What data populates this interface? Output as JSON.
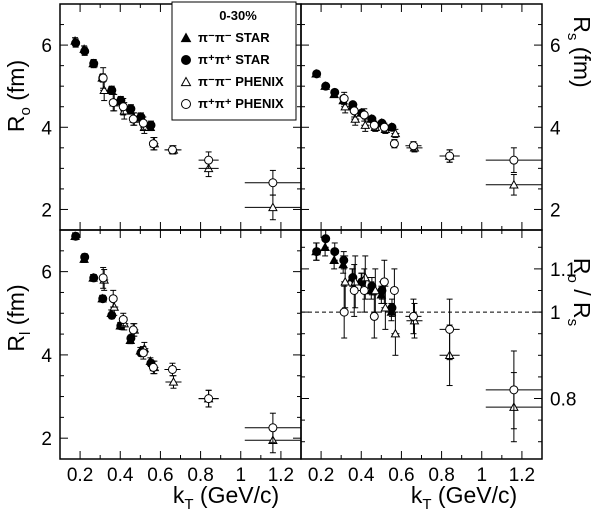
{
  "chart_data": [
    {
      "panel": "top-left",
      "type": "scatter",
      "ylabel": "R_o (fm)",
      "ylabel_main": "R",
      "ylabel_sub": "o",
      "ylabel_unit": "(fm)",
      "ylim": [
        1.5,
        7.0
      ],
      "yticks": [
        2,
        4,
        6
      ],
      "xlim": [
        0.1,
        1.3
      ],
      "legend": {
        "title": "0-30%",
        "position": "top-center",
        "entries": [
          "π⁻π⁻ STAR",
          "π⁺π⁺ STAR",
          "π⁻π⁻ PHENIX",
          "π⁺π⁺ PHENIX"
        ]
      },
      "series": [
        {
          "name": "π⁻π⁻ STAR",
          "marker": "filled-triangle",
          "x": [
            0.175,
            0.22,
            0.265,
            0.31,
            0.355,
            0.4,
            0.45,
            0.5,
            0.55
          ],
          "y": [
            6.1,
            5.9,
            5.55,
            5.2,
            4.9,
            4.65,
            4.4,
            4.25,
            4.0
          ],
          "err": [
            0.08,
            0.08,
            0.08,
            0.08,
            0.08,
            0.08,
            0.08,
            0.08,
            0.08
          ]
        },
        {
          "name": "π⁺π⁺ STAR",
          "marker": "filled-circle",
          "x": [
            0.178,
            0.223,
            0.268,
            0.313,
            0.358,
            0.403,
            0.453,
            0.503,
            0.553
          ],
          "y": [
            6.05,
            5.85,
            5.55,
            5.2,
            4.9,
            4.65,
            4.45,
            4.25,
            4.05
          ],
          "err": [
            0.1,
            0.1,
            0.1,
            0.1,
            0.1,
            0.1,
            0.1,
            0.1,
            0.1
          ]
        },
        {
          "name": "π⁻π⁻ PHENIX",
          "marker": "open-triangle",
          "x": [
            0.32,
            0.37,
            0.42,
            0.47,
            0.52,
            0.57,
            0.665,
            0.84,
            1.16
          ],
          "y": [
            4.9,
            4.6,
            4.4,
            4.2,
            4.0,
            3.6,
            3.45,
            3.0,
            2.05
          ],
          "err": [
            0.25,
            0.2,
            0.2,
            0.15,
            0.15,
            0.15,
            0.1,
            0.2,
            0.3
          ],
          "xerr": [
            0.02,
            0.02,
            0.02,
            0.02,
            0.02,
            0.02,
            0.04,
            0.05,
            0.14
          ]
        },
        {
          "name": "π⁺π⁺ PHENIX",
          "marker": "open-circle",
          "x": [
            0.315,
            0.365,
            0.415,
            0.465,
            0.515,
            0.565,
            0.66,
            0.84,
            1.16
          ],
          "y": [
            5.2,
            4.6,
            4.5,
            4.2,
            4.1,
            3.6,
            3.45,
            3.2,
            2.65
          ],
          "err": [
            0.25,
            0.2,
            0.2,
            0.15,
            0.15,
            0.15,
            0.1,
            0.2,
            0.3
          ],
          "xerr": [
            0.02,
            0.02,
            0.02,
            0.02,
            0.02,
            0.02,
            0.04,
            0.05,
            0.14
          ]
        }
      ]
    },
    {
      "panel": "top-right",
      "type": "scatter",
      "ylabel": "R_s (fm)",
      "ylabel_main": "R",
      "ylabel_sub": "s",
      "ylabel_unit": "(fm)",
      "ylim": [
        1.5,
        7.0
      ],
      "yticks": [
        2,
        4,
        6
      ],
      "xlim": [
        0.1,
        1.3
      ],
      "series": [
        {
          "name": "π⁻π⁻ STAR",
          "marker": "filled-triangle",
          "x": [
            0.175,
            0.22,
            0.265,
            0.31,
            0.355,
            0.4,
            0.45,
            0.5,
            0.55
          ],
          "y": [
            5.3,
            5.0,
            4.8,
            4.65,
            4.5,
            4.35,
            4.2,
            4.1,
            4.0
          ],
          "err": [
            0.05,
            0.05,
            0.05,
            0.05,
            0.05,
            0.05,
            0.05,
            0.05,
            0.05
          ]
        },
        {
          "name": "π⁺π⁺ STAR",
          "marker": "filled-circle",
          "x": [
            0.178,
            0.223,
            0.268,
            0.313,
            0.358,
            0.403,
            0.453,
            0.503,
            0.553
          ],
          "y": [
            5.3,
            5.0,
            4.85,
            4.7,
            4.55,
            4.35,
            4.2,
            4.1,
            4.0
          ],
          "err": [
            0.05,
            0.05,
            0.05,
            0.05,
            0.05,
            0.05,
            0.05,
            0.05,
            0.05
          ]
        },
        {
          "name": "π⁻π⁻ PHENIX",
          "marker": "open-triangle",
          "x": [
            0.32,
            0.37,
            0.42,
            0.47,
            0.52,
            0.57,
            0.665,
            0.84,
            1.16
          ],
          "y": [
            4.5,
            4.2,
            4.05,
            4.0,
            3.95,
            3.85,
            3.5,
            3.3,
            2.6
          ],
          "err": [
            0.15,
            0.15,
            0.15,
            0.1,
            0.1,
            0.1,
            0.1,
            0.15,
            0.25
          ],
          "xerr": [
            0.02,
            0.02,
            0.02,
            0.02,
            0.02,
            0.02,
            0.04,
            0.05,
            0.14
          ]
        },
        {
          "name": "π⁺π⁺ PHENIX",
          "marker": "open-circle",
          "x": [
            0.315,
            0.365,
            0.415,
            0.465,
            0.515,
            0.565,
            0.66,
            0.84,
            1.16
          ],
          "y": [
            4.7,
            4.4,
            4.3,
            4.05,
            4.0,
            3.6,
            3.55,
            3.3,
            3.2
          ],
          "err": [
            0.15,
            0.15,
            0.15,
            0.1,
            0.1,
            0.1,
            0.1,
            0.15,
            0.3
          ],
          "xerr": [
            0.02,
            0.02,
            0.02,
            0.02,
            0.02,
            0.02,
            0.04,
            0.05,
            0.14
          ]
        }
      ]
    },
    {
      "panel": "bottom-left",
      "type": "scatter",
      "ylabel": "R_l (fm)",
      "ylabel_main": "R",
      "ylabel_sub": "l",
      "ylabel_unit": "(fm)",
      "xlabel": "k_T (GeV/c)",
      "xlabel_main": "k",
      "xlabel_sub": "T",
      "xlabel_unit": "(GeV/c)",
      "ylim": [
        1.5,
        7.0
      ],
      "yticks": [
        2,
        4,
        6
      ],
      "xlim": [
        0.1,
        1.3
      ],
      "xticks": [
        0.2,
        0.4,
        0.6,
        0.8,
        1.0,
        1.2
      ],
      "xticklabels": [
        "0.2",
        "0.4",
        "0.6",
        "0.8",
        "1",
        "1.2"
      ],
      "series": [
        {
          "name": "π⁻π⁻ STAR",
          "marker": "filled-triangle",
          "x": [
            0.175,
            0.22,
            0.265,
            0.31,
            0.355,
            0.4,
            0.45,
            0.5,
            0.55
          ],
          "y": [
            6.85,
            6.3,
            5.85,
            5.35,
            5.0,
            4.7,
            4.35,
            4.1,
            3.85
          ],
          "err": [
            0.08,
            0.08,
            0.08,
            0.08,
            0.08,
            0.08,
            0.08,
            0.08,
            0.08
          ]
        },
        {
          "name": "π⁺π⁺ STAR",
          "marker": "filled-circle",
          "x": [
            0.178,
            0.223,
            0.268,
            0.313,
            0.358,
            0.403,
            0.453,
            0.503,
            0.553
          ],
          "y": [
            6.85,
            6.35,
            5.85,
            5.35,
            4.95,
            4.7,
            4.4,
            4.05,
            3.8
          ],
          "err": [
            0.08,
            0.08,
            0.08,
            0.08,
            0.08,
            0.08,
            0.08,
            0.08,
            0.08
          ]
        },
        {
          "name": "π⁻π⁻ PHENIX",
          "marker": "open-triangle",
          "x": [
            0.32,
            0.37,
            0.42,
            0.47,
            0.52,
            0.57,
            0.665,
            0.84,
            1.16
          ],
          "y": [
            5.8,
            5.15,
            4.75,
            4.6,
            4.15,
            3.7,
            3.35,
            2.95,
            1.95
          ],
          "err": [
            0.25,
            0.2,
            0.15,
            0.15,
            0.15,
            0.15,
            0.15,
            0.2,
            0.3
          ],
          "xerr": [
            0.02,
            0.02,
            0.02,
            0.02,
            0.02,
            0.02,
            0.04,
            0.05,
            0.14
          ]
        },
        {
          "name": "π⁺π⁺ PHENIX",
          "marker": "open-circle",
          "x": [
            0.315,
            0.365,
            0.415,
            0.465,
            0.515,
            0.565,
            0.66,
            0.84,
            1.16
          ],
          "y": [
            5.85,
            5.35,
            4.85,
            4.6,
            4.05,
            3.7,
            3.65,
            2.95,
            2.25
          ],
          "err": [
            0.25,
            0.2,
            0.15,
            0.15,
            0.15,
            0.15,
            0.15,
            0.2,
            0.35
          ],
          "xerr": [
            0.02,
            0.02,
            0.02,
            0.02,
            0.02,
            0.02,
            0.04,
            0.05,
            0.14
          ]
        }
      ]
    },
    {
      "panel": "bottom-right",
      "type": "scatter",
      "ylabel": "R_o / R_s",
      "ylabel_main": "R",
      "ylabel_sub": "o",
      "ylabel_unit": "/ R",
      "ylabel_sub2": "s",
      "xlabel": "k_T (GeV/c)",
      "xlabel_main": "k",
      "xlabel_sub": "T",
      "xlabel_unit": "(GeV/c)",
      "ylim": [
        0.66,
        1.19
      ],
      "yticks": [
        0.8,
        1.0,
        1.1
      ],
      "yticklabels": [
        "0.8",
        "1",
        "1.1"
      ],
      "xlim": [
        0.1,
        1.3
      ],
      "xticks": [
        0.2,
        0.4,
        0.6,
        0.8,
        1.0,
        1.2
      ],
      "xticklabels": [
        "0.2",
        "0.4",
        "0.6",
        "0.8",
        "1",
        "1.2"
      ],
      "reference_line": {
        "y": 1.0,
        "style": "dashed"
      },
      "series": [
        {
          "name": "π⁻π⁻ STAR",
          "marker": "filled-triangle",
          "x": [
            0.175,
            0.22,
            0.265,
            0.31,
            0.355,
            0.4,
            0.45,
            0.5,
            0.55
          ],
          "y": [
            1.14,
            1.15,
            1.12,
            1.11,
            1.08,
            1.07,
            1.05,
            1.04,
            1.0
          ],
          "err": [
            0.02,
            0.02,
            0.02,
            0.02,
            0.02,
            0.02,
            0.02,
            0.02,
            0.02
          ]
        },
        {
          "name": "π⁺π⁺ STAR",
          "marker": "filled-circle",
          "x": [
            0.178,
            0.223,
            0.268,
            0.313,
            0.358,
            0.403,
            0.453,
            0.503,
            0.553
          ],
          "y": [
            1.14,
            1.17,
            1.14,
            1.12,
            1.08,
            1.07,
            1.06,
            1.05,
            1.01
          ],
          "err": [
            0.02,
            0.02,
            0.02,
            0.02,
            0.02,
            0.02,
            0.02,
            0.02,
            0.02
          ]
        },
        {
          "name": "π⁻π⁻ PHENIX",
          "marker": "open-triangle",
          "x": [
            0.32,
            0.37,
            0.42,
            0.47,
            0.52,
            0.57,
            0.665,
            0.84,
            1.16
          ],
          "y": [
            1.07,
            1.07,
            1.08,
            1.05,
            1.01,
            0.95,
            0.98,
            0.9,
            0.78
          ],
          "err": [
            0.06,
            0.06,
            0.05,
            0.05,
            0.05,
            0.05,
            0.04,
            0.07,
            0.08
          ],
          "xerr": [
            0.02,
            0.02,
            0.02,
            0.02,
            0.02,
            0.02,
            0.04,
            0.05,
            0.14
          ]
        },
        {
          "name": "π⁺π⁺ PHENIX",
          "marker": "open-circle",
          "x": [
            0.315,
            0.365,
            0.415,
            0.465,
            0.515,
            0.565,
            0.66,
            0.84,
            1.16
          ],
          "y": [
            1.0,
            1.05,
            1.05,
            0.99,
            1.07,
            1.05,
            0.99,
            0.96,
            0.82
          ],
          "err": [
            0.06,
            0.06,
            0.05,
            0.05,
            0.05,
            0.05,
            0.04,
            0.07,
            0.09
          ],
          "xerr": [
            0.02,
            0.02,
            0.02,
            0.02,
            0.02,
            0.02,
            0.04,
            0.05,
            0.14
          ]
        }
      ]
    }
  ]
}
